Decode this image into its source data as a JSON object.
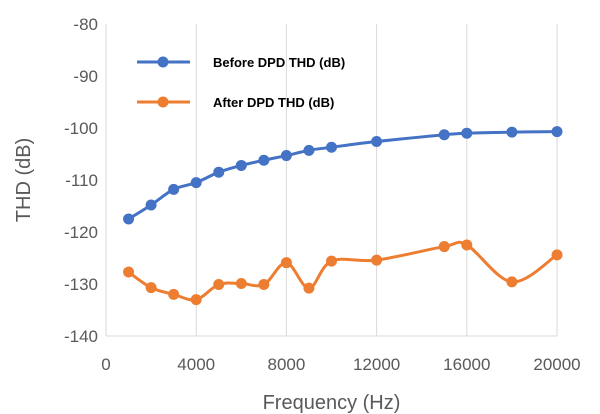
{
  "chart_data": {
    "type": "line",
    "xlabel": "Frequency (Hz)",
    "ylabel": "THD (dB)",
    "xlim": [
      0,
      20000
    ],
    "ylim": [
      -140,
      -80
    ],
    "x_ticks": [
      0,
      4000,
      8000,
      12000,
      16000,
      20000
    ],
    "x_tick_labels": [
      "0",
      "4000",
      "8000",
      "12000",
      "16000",
      "20000"
    ],
    "y_ticks": [
      -140,
      -130,
      -120,
      -110,
      -100,
      -90,
      -80
    ],
    "y_tick_labels": [
      "-140",
      "-130",
      "-120",
      "-110",
      "-100",
      "-90",
      "-80"
    ],
    "grid": "vertical",
    "legend_position": "top-left",
    "series": [
      {
        "name": "Before DPD THD (dB)",
        "color": "#4472C4",
        "x": [
          1000,
          2000,
          3000,
          4000,
          5000,
          6000,
          7000,
          8000,
          9000,
          10000,
          12000,
          15000,
          16000,
          18000,
          20000
        ],
        "values": [
          -117.5,
          -114.8,
          -111.8,
          -110.5,
          -108.5,
          -107.2,
          -106.2,
          -105.3,
          -104.3,
          -103.7,
          -102.6,
          -101.3,
          -101.0,
          -100.8,
          -100.7
        ]
      },
      {
        "name": "After DPD THD (dB)",
        "color": "#ED7D31",
        "x": [
          1000,
          2000,
          3000,
          4000,
          5000,
          6000,
          7000,
          8000,
          9000,
          10000,
          12000,
          15000,
          16000,
          18000,
          20000
        ],
        "values": [
          -127.7,
          -130.7,
          -132.0,
          -133.0,
          -130.1,
          -129.9,
          -130.1,
          -125.9,
          -130.8,
          -125.6,
          -125.4,
          -122.8,
          -122.5,
          -129.6,
          -124.4
        ]
      }
    ]
  }
}
